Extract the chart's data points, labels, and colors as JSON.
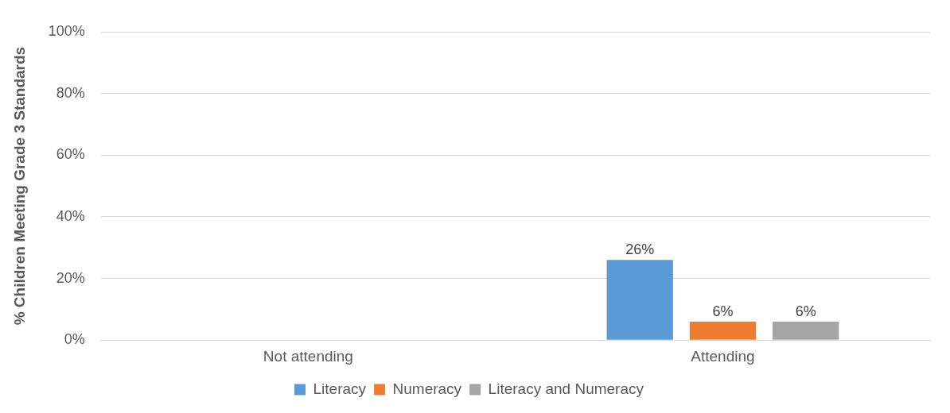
{
  "chart_data": {
    "type": "bar",
    "ylabel": "% Children Meeting Grade 3 Standards",
    "categories": [
      "Not attending",
      "Attending"
    ],
    "series": [
      {
        "name": "Literacy",
        "color": "#5b9bd5",
        "values": [
          null,
          26
        ],
        "value_labels": [
          null,
          "26%"
        ]
      },
      {
        "name": "Numeracy",
        "color": "#ed7d31",
        "values": [
          null,
          6
        ],
        "value_labels": [
          null,
          "6%"
        ]
      },
      {
        "name": "Literacy and Numeracy",
        "color": "#a5a5a5",
        "values": [
          null,
          6
        ],
        "value_labels": [
          null,
          "6%"
        ]
      }
    ],
    "ylim": [
      0,
      100
    ],
    "yticks": [
      {
        "value": 0,
        "label": "0%"
      },
      {
        "value": 20,
        "label": "20%"
      },
      {
        "value": 40,
        "label": "40%"
      },
      {
        "value": 60,
        "label": "60%"
      },
      {
        "value": 80,
        "label": "80%"
      },
      {
        "value": 100,
        "label": "100%"
      }
    ],
    "grid": "y",
    "legend": "bottom"
  }
}
